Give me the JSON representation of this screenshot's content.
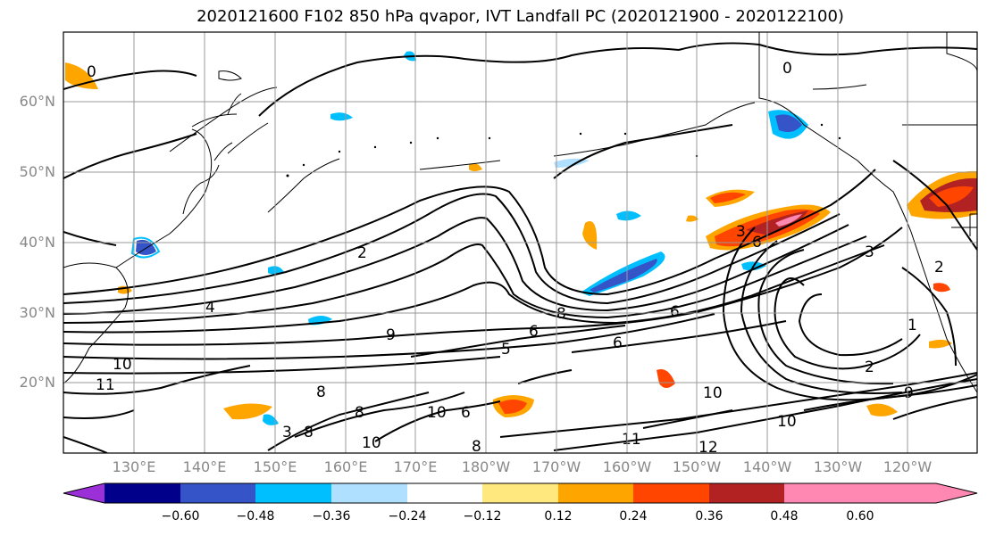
{
  "title": "2020121600 F102 850 hPa qvapor, IVT Landfall PC (2020121900 - 2020122100)",
  "lat_labels": [
    "60°N",
    "50°N",
    "40°N",
    "30°N",
    "20°N"
  ],
  "lon_labels": [
    "130°E",
    "140°E",
    "150°E",
    "160°E",
    "170°E",
    "180°W",
    "170°W",
    "160°W",
    "150°W",
    "140°W",
    "130°W",
    "120°W"
  ],
  "colorbar": {
    "colors": [
      "#9b30d8",
      "#00008b",
      "#3554c8",
      "#00bfff",
      "#b0e0ff",
      "#ffffff",
      "#ffe97f",
      "#ffa500",
      "#ff4500",
      "#b22222",
      "#ff88b2"
    ],
    "labels": [
      "−0.60",
      "−0.48",
      "−0.36",
      "−0.24",
      "−0.12",
      "0.12",
      "0.24",
      "0.36",
      "0.48",
      "0.60"
    ]
  },
  "contour_labels": [
    "0",
    "0",
    "2",
    "4",
    "9",
    "10",
    "11",
    "8",
    "8",
    "10",
    "10",
    "8",
    "5",
    "6",
    "8",
    "6",
    "6",
    "3",
    "6",
    "3",
    "2",
    "1",
    "2",
    "10",
    "12",
    "10",
    "11",
    "9",
    "3",
    "8",
    "6"
  ]
}
